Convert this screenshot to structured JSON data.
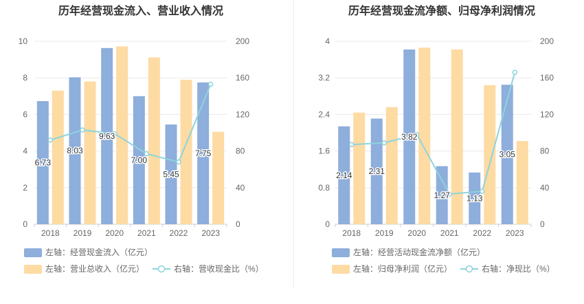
{
  "chart_data": [
    {
      "type": "bar",
      "title": "历年经营现金流入、营业收入情况",
      "categories": [
        "2018",
        "2019",
        "2020",
        "2021",
        "2022",
        "2023"
      ],
      "left_axis": {
        "ylim": [
          0,
          10
        ],
        "ticks": [
          "0",
          "2",
          "4",
          "6",
          "8",
          "10"
        ]
      },
      "right_axis": {
        "ylim": [
          0,
          200
        ],
        "ticks": [
          "0",
          "40",
          "80",
          "120",
          "160",
          "200"
        ]
      },
      "series": [
        {
          "name": "左轴：经营现金流入（亿元）",
          "type": "bar",
          "axis": "left",
          "color": "#8eaedb",
          "values": [
            6.73,
            8.03,
            9.63,
            7.0,
            5.45,
            7.75
          ],
          "labels": [
            "6.73",
            "8.03",
            "9.63",
            "7.00",
            "5.45",
            "7.75"
          ]
        },
        {
          "name": "左轴：营业总收入（亿元）",
          "type": "bar",
          "axis": "left",
          "color": "#fddba3",
          "values": [
            7.3,
            7.8,
            9.72,
            9.12,
            7.9,
            5.05
          ]
        },
        {
          "name": "右轴：营收现金比（%）",
          "type": "line",
          "axis": "right",
          "color": "#8dd4dc",
          "values": [
            92,
            103,
            99,
            77,
            68,
            153
          ]
        }
      ]
    },
    {
      "type": "bar",
      "title": "历年经营现金流净额、归母净利润情况",
      "categories": [
        "2018",
        "2019",
        "2020",
        "2021",
        "2022",
        "2023"
      ],
      "left_axis": {
        "ylim": [
          0,
          4
        ],
        "ticks": [
          "0",
          "0.8",
          "1.6",
          "2.4",
          "3.2",
          "4"
        ]
      },
      "right_axis": {
        "ylim": [
          0,
          200
        ],
        "ticks": [
          "0",
          "40",
          "80",
          "120",
          "160",
          "200"
        ]
      },
      "series": [
        {
          "name": "左轴：经营活动现金流净额（亿元）",
          "type": "bar",
          "axis": "left",
          "color": "#8eaedb",
          "values": [
            2.14,
            2.31,
            3.82,
            1.27,
            1.13,
            3.05
          ],
          "labels": [
            "2.14",
            "2.31",
            "3.82",
            "1.27",
            "1.13",
            "3.05"
          ]
        },
        {
          "name": "左轴：归母净利润（亿元）",
          "type": "bar",
          "axis": "left",
          "color": "#fddba3",
          "values": [
            2.44,
            2.56,
            3.86,
            3.82,
            3.04,
            1.82
          ]
        },
        {
          "name": "右轴：净现比（%）",
          "type": "line",
          "axis": "right",
          "color": "#8dd4dc",
          "values": [
            87,
            89,
            98,
            33,
            36,
            166
          ]
        }
      ]
    }
  ]
}
